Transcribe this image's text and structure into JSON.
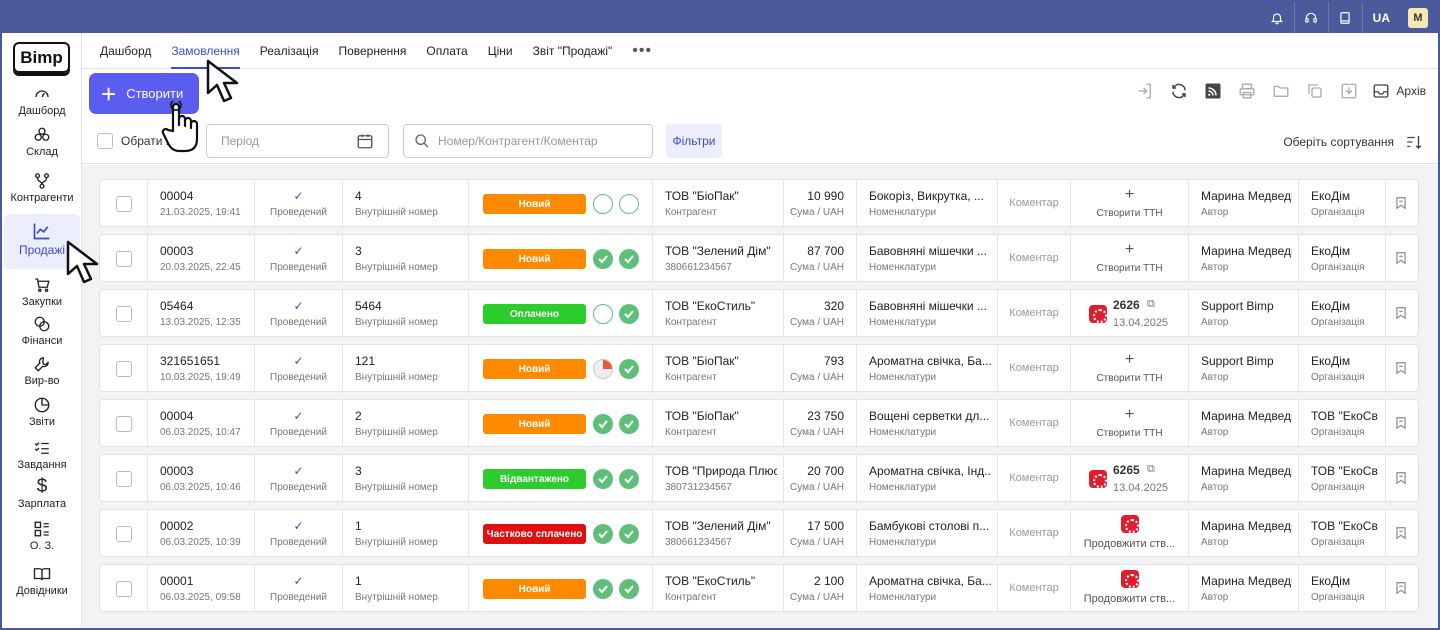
{
  "topbar": {
    "lang": "UA",
    "avatar": "M",
    "icons": [
      "bell-icon",
      "headset-icon",
      "book-icon"
    ]
  },
  "sidebar": {
    "logo": "Bimp",
    "items": [
      {
        "label": "Дашборд",
        "icon": "gauge-icon"
      },
      {
        "label": "Склад",
        "icon": "boxes-icon"
      },
      {
        "label": "Контрагенти",
        "icon": "network-icon"
      },
      {
        "label": "Продажі",
        "icon": "chart-icon"
      },
      {
        "label": "Закупки",
        "icon": "cart-icon"
      },
      {
        "label": "Фінанси",
        "icon": "coins-icon"
      },
      {
        "label": "Вир-во",
        "icon": "wrench-icon"
      },
      {
        "label": "Звіти",
        "icon": "pie-icon"
      },
      {
        "label": "Завдання",
        "icon": "checklist-icon"
      },
      {
        "label": "Зарплата",
        "icon": "dollar-icon"
      },
      {
        "label": "О. З.",
        "icon": "assets-icon"
      },
      {
        "label": "Довідники",
        "icon": "open-book-icon"
      }
    ]
  },
  "tabs": [
    "Дашборд",
    "Замовлення",
    "Реалізація",
    "Повернення",
    "Оплата",
    "Ціни",
    "Звіт \"Продажі\""
  ],
  "toolbar": {
    "create_label": "Створити",
    "archive_label": "Архів"
  },
  "filterbar": {
    "select_all_label": "Обрати в",
    "period_placeholder": "Період",
    "search_placeholder": "Номер/Контрагент/Коментар",
    "filters_label": "Фільтри",
    "sort_label": "Оберіть сортування"
  },
  "colors": {
    "accent": "#5a5df0",
    "new": "#ff8a00",
    "paid": "#2bcc2b",
    "partial": "#e01010",
    "done_red": "#e8573c",
    "done_green": "#5fbf7a"
  },
  "labels": {
    "posted": "Проведений",
    "internal": "Внутрішній номер",
    "contractor": "Контрагент",
    "sum": "Сума / UAH",
    "nomenclature": "Номенклатури",
    "comment": "Коментар",
    "create_tth": "Створити ТТН",
    "author": "Автор",
    "org": "Організація",
    "continue": "Продовжити ств..."
  },
  "orders": [
    {
      "number": "00004",
      "date": "21.03.2025, 19:41",
      "internal": "4",
      "status": "Новий",
      "status_color": "#ff8a00",
      "pay": "empty",
      "ship": "empty",
      "contractor": "ТОВ \"БіоПак\"",
      "contractor_sub": "Контрагент",
      "sum": "10 990",
      "items": "Бокоріз, Викрутка, ...",
      "delivery": "create",
      "author": "Марина Медведь",
      "org": "ЕкоДім"
    },
    {
      "number": "00003",
      "date": "20.03.2025, 22:45",
      "internal": "3",
      "status": "Новий",
      "status_color": "#ff8a00",
      "pay": "done",
      "ship": "done",
      "contractor": "ТОВ \"Зелений Дім\"",
      "contractor_sub": "380661234567",
      "sum": "87 700",
      "items": "Бавовняні мішечки ...",
      "delivery": "create",
      "author": "Марина Медведь",
      "org": "ЕкоДім"
    },
    {
      "number": "05464",
      "date": "13.03.2025, 12:35",
      "internal": "5464",
      "status": "Оплачено",
      "status_color": "#2bcc2b",
      "pay": "empty",
      "ship": "done",
      "contractor": "ТОВ \"ЕкоСтиль\"",
      "contractor_sub": "Контрагент",
      "sum": "320",
      "items": "Бавовняні мішечки ...",
      "delivery": "ttn",
      "ttn": "2626",
      "ttn_date": "13.04.2025",
      "author": "Support Bimp",
      "org": "ЕкоДім"
    },
    {
      "number": "321651651",
      "date": "10.03.2025, 19:49",
      "internal": "121",
      "status": "Новий",
      "status_color": "#ff8a00",
      "pay": "partial",
      "ship": "done",
      "contractor": "ТОВ \"БіоПак\"",
      "contractor_sub": "Контрагент",
      "sum": "793",
      "items": "Ароматна свічка, Ба...",
      "delivery": "create",
      "author": "Support Bimp",
      "org": "ЕкоДім"
    },
    {
      "number": "00004",
      "date": "06.03.2025, 10:47",
      "internal": "2",
      "status": "Новий",
      "status_color": "#ff8a00",
      "pay": "done",
      "ship": "done",
      "contractor": "ТОВ \"БіоПак\"",
      "contractor_sub": "Контрагент",
      "sum": "23 750",
      "items": "Вощені серветки дл...",
      "delivery": "create",
      "author": "Марина Медведь",
      "org": "ТОВ \"ЕкоСв"
    },
    {
      "number": "00003",
      "date": "06.03.2025, 10:46",
      "internal": "3",
      "status": "Відвантажено",
      "status_color": "#2bcc2b",
      "pay": "done",
      "ship": "done",
      "contractor": "ТОВ \"Природа Плюс",
      "contractor_sub": "380731234567",
      "sum": "20 700",
      "items": "Ароматна свічка, Інд...",
      "delivery": "ttn",
      "ttn": "6265",
      "ttn_date": "13.04.2025",
      "author": "Марина Медведь",
      "org": "ТОВ \"ЕкоСв"
    },
    {
      "number": "00002",
      "date": "06.03.2025, 10:39",
      "internal": "1",
      "status": "Частково сплачено",
      "status_color": "#e01010",
      "pay": "done",
      "ship": "done",
      "contractor": "ТОВ \"Зелений Дім\"",
      "contractor_sub": "380661234567",
      "sum": "17 500",
      "items": "Бамбукові столові п...",
      "delivery": "continue",
      "author": "Марина Медведь",
      "org": "ТОВ \"ЕкоСв"
    },
    {
      "number": "00001",
      "date": "06.03.2025, 09:58",
      "internal": "1",
      "status": "Новий",
      "status_color": "#ff8a00",
      "pay": "done",
      "ship": "done",
      "contractor": "ТОВ \"ЕкоСтиль\"",
      "contractor_sub": "Контрагент",
      "sum": "2 100",
      "items": "Ароматна свічка, Ба...",
      "delivery": "continue",
      "author": "Марина Медведь",
      "org": "ЕкоДім"
    }
  ]
}
